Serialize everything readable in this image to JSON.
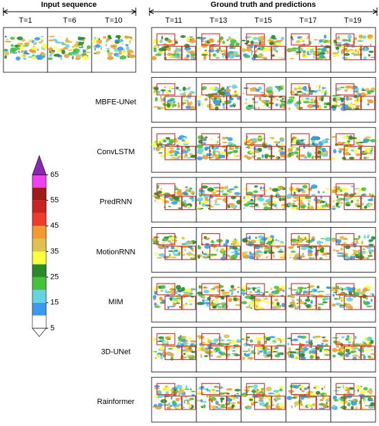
{
  "input_sequence": {
    "title": "Input sequence",
    "labels": [
      "T=1",
      "T=6",
      "T=10"
    ]
  },
  "ground_truth": {
    "title": "Ground truth and predictions",
    "labels": [
      "T=11",
      "T=13",
      "T=15",
      "T=17",
      "T=19"
    ]
  },
  "models": [
    "MBFE-UNet",
    "ConvLSTM",
    "PredRNN",
    "MotionRNN",
    "MIM",
    "3D-UNet",
    "Rainformer"
  ],
  "colorbar": {
    "range": [
      5,
      65
    ],
    "ticks": [
      5,
      15,
      25,
      35,
      45,
      55,
      65
    ],
    "colors": [
      "#ffffff",
      "#3a9af0",
      "#66d4e0",
      "#44c23a",
      "#2a8a2a",
      "#ffff40",
      "#e0c050",
      "#f09a30",
      "#f03a2a",
      "#c82222",
      "#a01a1a",
      "#f040f0"
    ],
    "under": "#ffffff",
    "over": "#8a2ab0"
  }
}
